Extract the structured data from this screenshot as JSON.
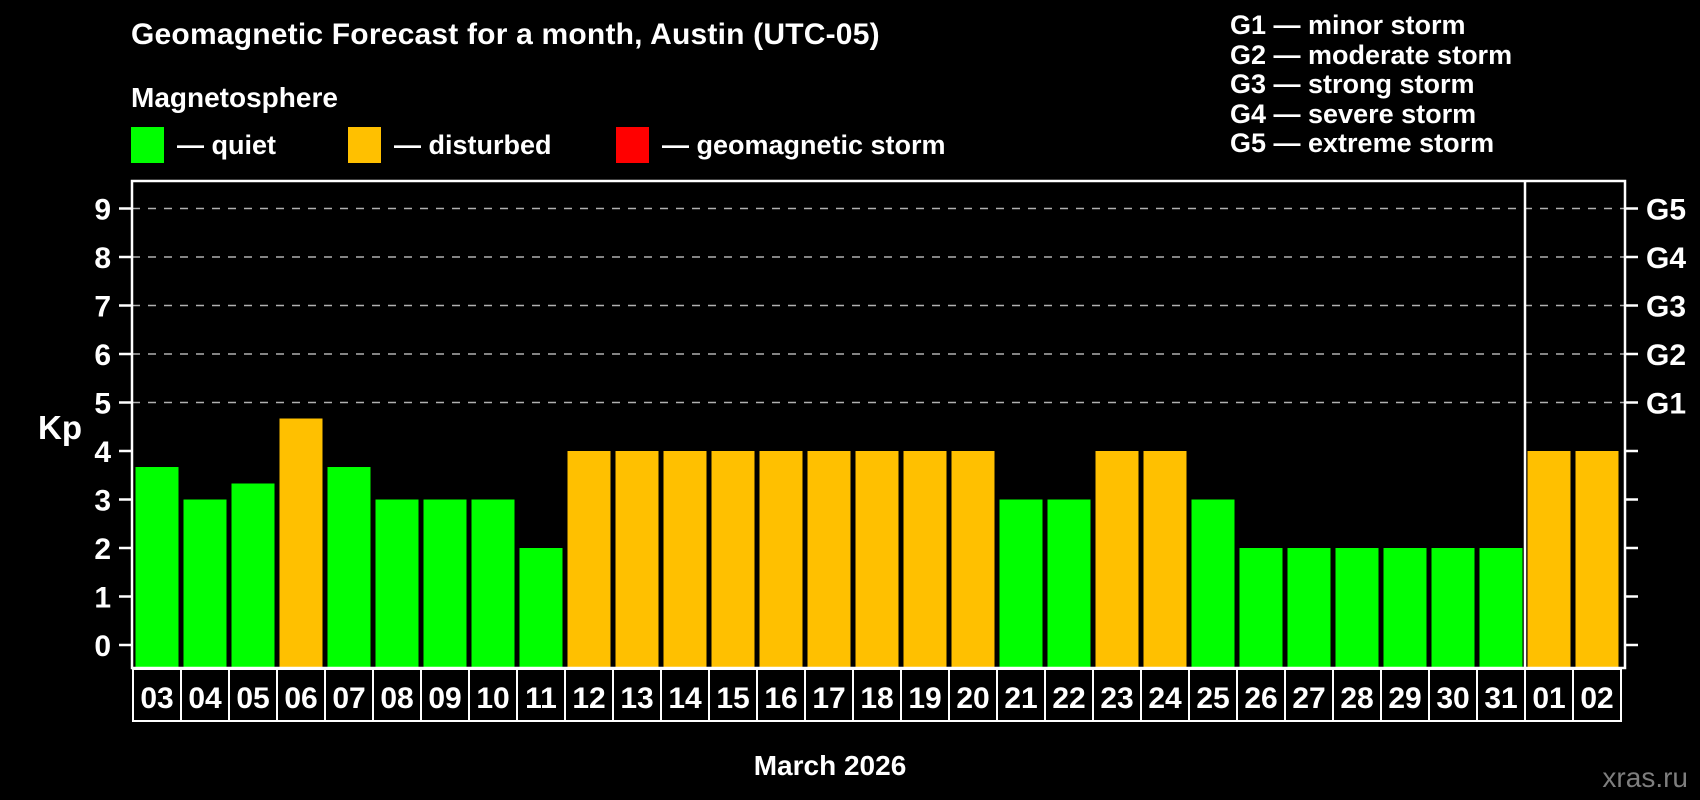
{
  "header": {
    "title": "Geomagnetic Forecast for a month, Austin (UTC-05)",
    "subtitle": "Magnetosphere",
    "legend": [
      {
        "key": "quiet",
        "label": "— quiet",
        "color": "#00ff00"
      },
      {
        "key": "disturbed",
        "label": "— disturbed",
        "color": "#ffc000"
      },
      {
        "key": "storm",
        "label": "— geomagnetic storm",
        "color": "#ff0000"
      }
    ],
    "g_legend": [
      "G1 — minor storm",
      "G2 — moderate storm",
      "G3 — strong storm",
      "G4 — severe storm",
      "G5 — extreme storm"
    ]
  },
  "chart_data": {
    "type": "bar",
    "title": "Geomagnetic Forecast for a month, Austin (UTC-05)",
    "xlabel": "March 2026",
    "ylabel": "Kp",
    "ylim": [
      0,
      9.4
    ],
    "grid": "dashed horizontal at Kp 5-9",
    "legend_position": "top",
    "categories": [
      "03",
      "04",
      "05",
      "06",
      "07",
      "08",
      "09",
      "10",
      "11",
      "12",
      "13",
      "14",
      "15",
      "16",
      "17",
      "18",
      "19",
      "20",
      "21",
      "22",
      "23",
      "24",
      "25",
      "26",
      "27",
      "28",
      "29",
      "30",
      "31",
      "01",
      "02"
    ],
    "values": [
      3.67,
      3,
      3.33,
      4.67,
      3.67,
      3,
      3,
      3,
      2,
      4,
      4,
      4,
      4,
      4,
      4,
      4,
      4,
      4,
      3,
      3,
      4,
      4,
      3,
      2,
      2,
      2,
      2,
      2,
      2,
      4,
      4
    ],
    "yticks": [
      0,
      1,
      2,
      3,
      4,
      5,
      6,
      7,
      8,
      9
    ],
    "gridlines_at": [
      5,
      6,
      7,
      8,
      9
    ],
    "right_axis_labels": [
      {
        "kp": 5,
        "label": "G1"
      },
      {
        "kp": 6,
        "label": "G2"
      },
      {
        "kp": 7,
        "label": "G3"
      },
      {
        "kp": 8,
        "label": "G4"
      },
      {
        "kp": 9,
        "label": "G5"
      }
    ],
    "month_separator_before_index": 29,
    "colors": {
      "quiet": "#00ff00",
      "disturbed": "#ffc000",
      "storm": "#ff0000"
    },
    "thresholds": {
      "disturbed": 4,
      "storm": 5
    }
  },
  "footer": {
    "month_label": "March 2026",
    "watermark": "xras.ru"
  }
}
